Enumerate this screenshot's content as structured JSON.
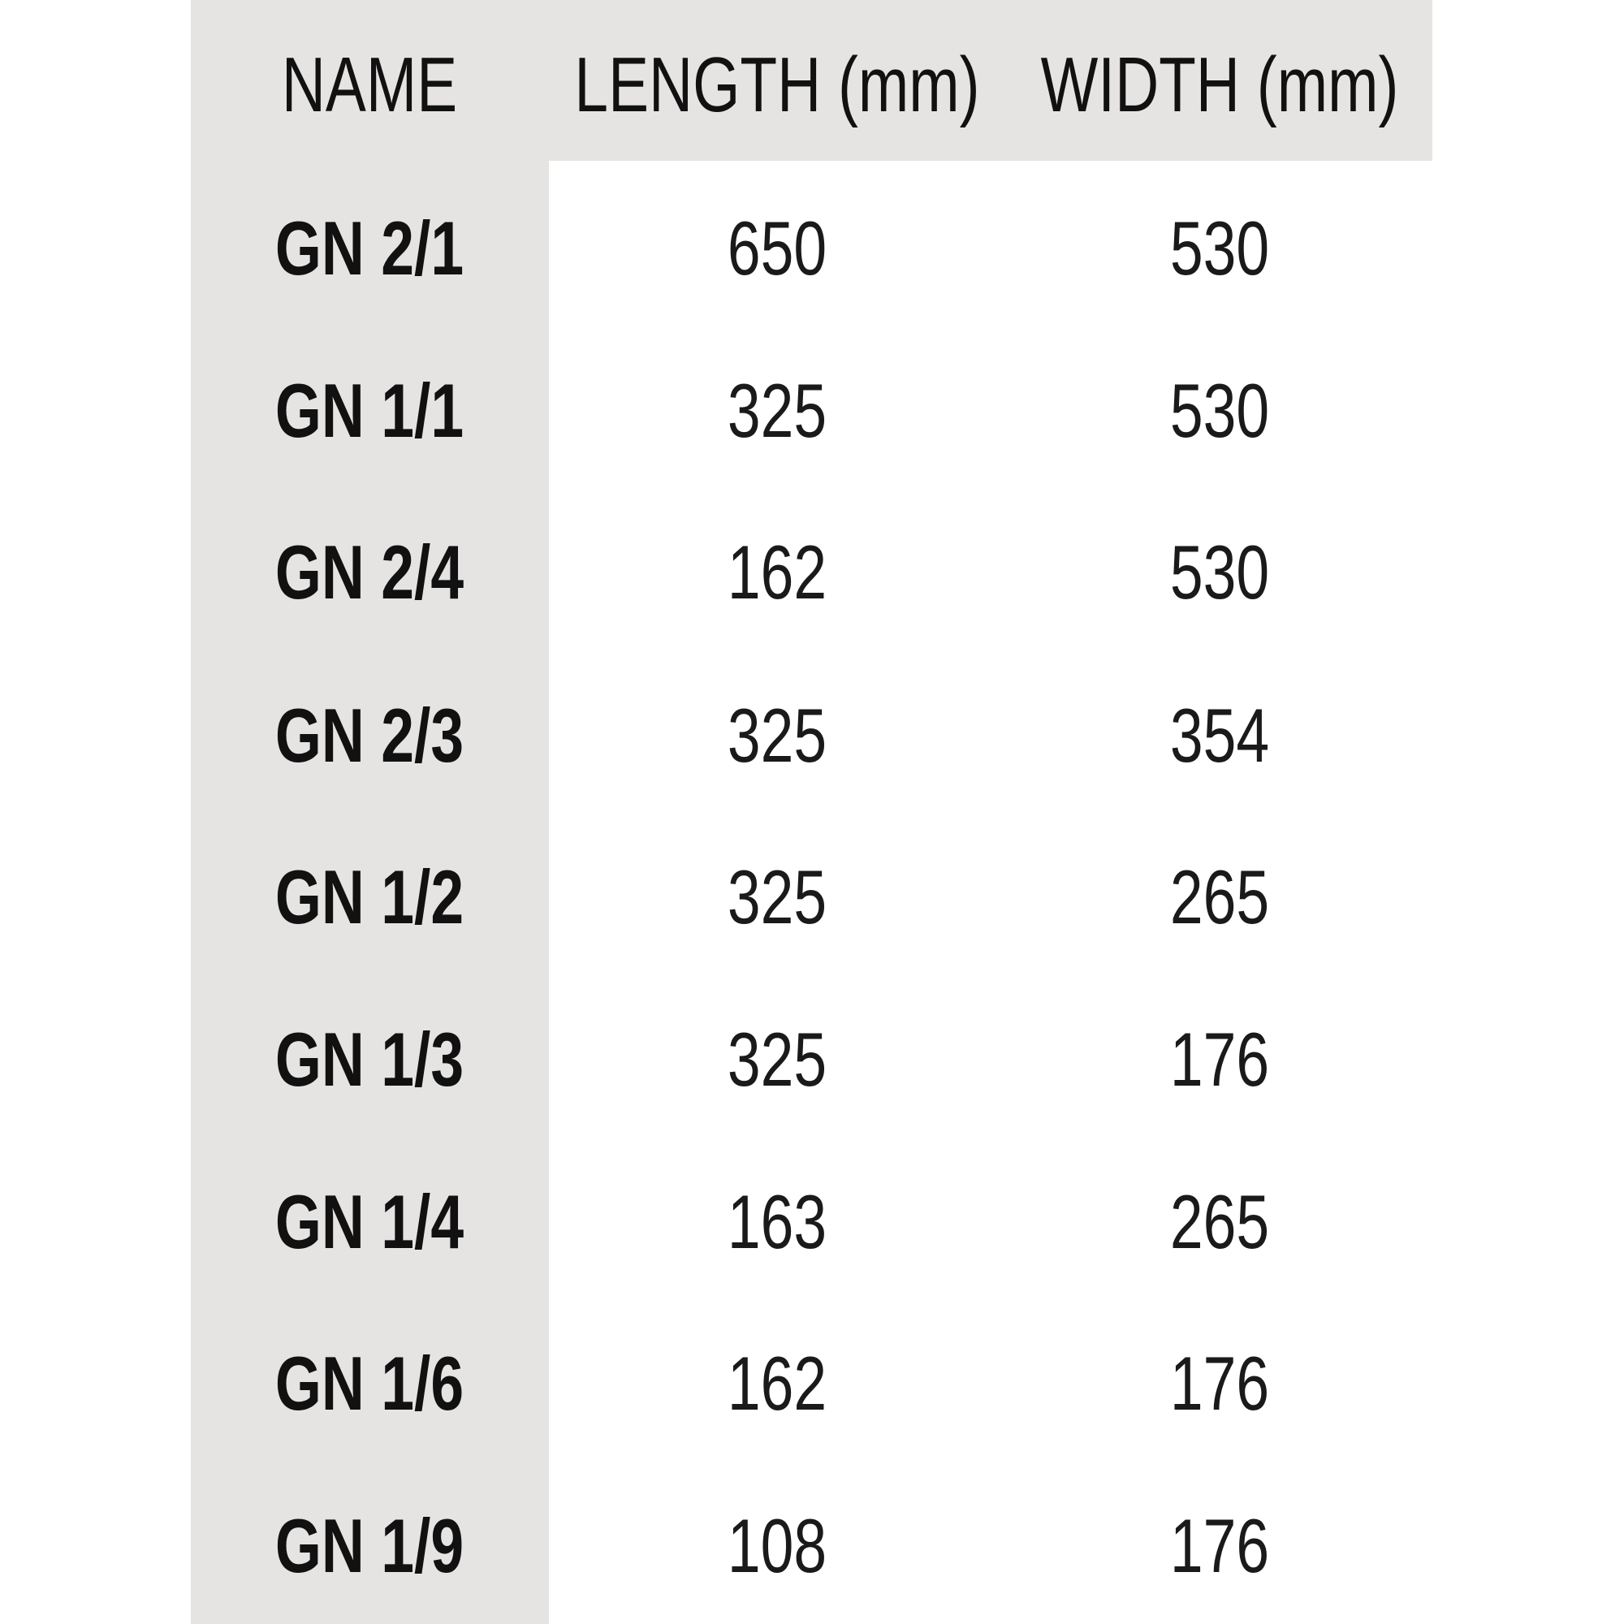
{
  "table": {
    "headers": [
      "NAME",
      "LENGTH (mm)",
      "WIDTH (mm)"
    ],
    "rows": [
      {
        "name": "GN 2/1",
        "length": "650",
        "width": "530"
      },
      {
        "name": "GN 1/1",
        "length": "325",
        "width": "530"
      },
      {
        "name": "GN 2/4",
        "length": "162",
        "width": "530"
      },
      {
        "name": "GN 2/3",
        "length": "325",
        "width": "354"
      },
      {
        "name": "GN 1/2",
        "length": "325",
        "width": "265"
      },
      {
        "name": "GN 1/3",
        "length": "325",
        "width": "176"
      },
      {
        "name": "GN 1/4",
        "length": "163",
        "width": "265"
      },
      {
        "name": "GN 1/6",
        "length": "162",
        "width": "176"
      },
      {
        "name": "GN 1/9",
        "length": "108",
        "width": "176"
      }
    ]
  },
  "colors": {
    "band": "#e6e4e3",
    "background": "#ffffff",
    "text": "#111111"
  }
}
